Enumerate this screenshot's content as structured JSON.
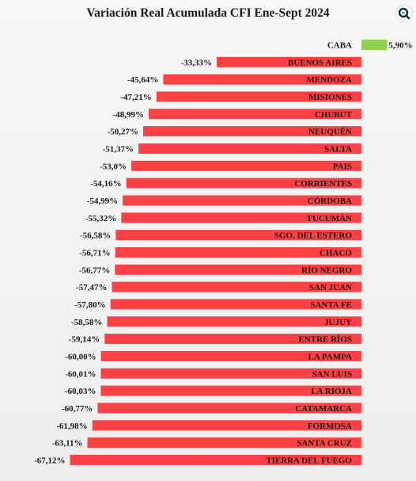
{
  "colors": {
    "negative": "#ff4044",
    "positive": "#92d050",
    "logo_ring": "#0c2a3e"
  },
  "logo": {
    "icon": "magnifier-logo-icon"
  },
  "chart_data": {
    "type": "bar",
    "orientation": "horizontal",
    "title": "Variación Real Acumulada CFI Ene-Sept 2024",
    "categories": [
      "CABA",
      "BUENOS AIRES",
      "MENDOZA",
      "MISIONES",
      "CHUBUT",
      "NEUQUÉN",
      "SALTA",
      "PAIS",
      "CORRIENTES",
      "CÓRDOBA",
      "TUCUMÁN",
      "SGO. DEL ESTERO",
      "CHACO",
      "RÍO NEGRO",
      "SAN JUAN",
      "SANTA FE",
      "JUJUY",
      "ENTRE RÍOS",
      "LA PAMPA",
      "SAN LUIS",
      "LA RIOJA",
      "CATAMARCA",
      "FORMOSA",
      "SANTA CRUZ",
      "TIERRA DEL FUEGO"
    ],
    "values": [
      5.9,
      -33.33,
      -45.64,
      -47.21,
      -48.99,
      -50.27,
      -51.37,
      -53.0,
      -54.16,
      -54.99,
      -55.32,
      -56.58,
      -56.71,
      -56.77,
      -57.47,
      -57.8,
      -58.58,
      -59.14,
      -60.0,
      -60.01,
      -60.03,
      -60.77,
      -61.98,
      -63.11,
      -67.12
    ],
    "value_labels": [
      "5,90%",
      "-33,33%",
      "-45,64%",
      "-47,21%",
      "-48,99%",
      "-50,27%",
      "-51,37%",
      "-53,0%",
      "-54,16%",
      "-54,99%",
      "-55,32%",
      "-56,58%",
      "-56,71%",
      "-56,77%",
      "-57,47%",
      "-57,80%",
      "-58,58%",
      "-59,14%",
      "-60,00%",
      "-60,01%",
      "-60,03%",
      "-60,77%",
      "-61,98%",
      "-63,11%",
      "-67,12%"
    ],
    "xlim": [
      -67.12,
      5.9
    ],
    "grid": false,
    "legend": "none"
  }
}
